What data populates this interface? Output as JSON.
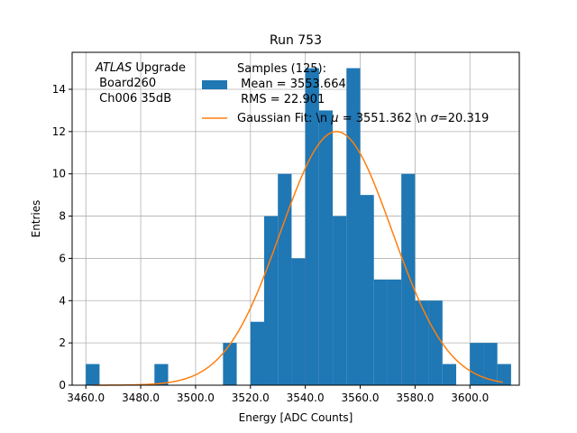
{
  "chart_data": {
    "type": "bar",
    "title": "Run 753",
    "xlabel": "Energy [ADC Counts]",
    "ylabel": "Entries",
    "xlim": [
      3455,
      3618
    ],
    "ylim": [
      0,
      15.75
    ],
    "grid": true,
    "x_ticks": [
      3460,
      3480,
      3500,
      3520,
      3540,
      3560,
      3580,
      3600
    ],
    "x_tick_labels": [
      "3460.0",
      "3480.0",
      "3500.0",
      "3520.0",
      "3540.0",
      "3560.0",
      "3580.0",
      "3600.0"
    ],
    "y_ticks": [
      0,
      2,
      4,
      6,
      8,
      10,
      12,
      14
    ],
    "y_tick_labels": [
      "0",
      "2",
      "4",
      "6",
      "8",
      "10",
      "12",
      "14"
    ],
    "histogram": {
      "name": "Samples (125):\n Mean = 3553.664\n RMS = 22.901",
      "name_lines": [
        "Samples (125):",
        " Mean = 3553.664",
        " RMS = 22.901"
      ],
      "color": "#1f77b4",
      "bin_width": 5,
      "bin_starts": [
        3460,
        3485,
        3510,
        3520,
        3525,
        3530,
        3535,
        3540,
        3545,
        3550,
        3555,
        3560,
        3565,
        3570,
        3575,
        3580,
        3585,
        3590,
        3600,
        3605,
        3610
      ],
      "counts": [
        1,
        1,
        2,
        3,
        8,
        10,
        6,
        15,
        13,
        8,
        15,
        9,
        5,
        5,
        10,
        4,
        4,
        1,
        2,
        2,
        1
      ]
    },
    "fit": {
      "name": "Gaussian Fit: \\n $\\mu$ = 3551.362 \\n $\\sigma$=20.319",
      "label_prefix": "Gaussian Fit: \\n ",
      "label_mu": "μ",
      "label_mid": " = 3551.362 \\n ",
      "label_sigma": "σ",
      "label_suffix": "=20.319",
      "color": "#ff7f0e",
      "mu": 3551.362,
      "sigma": 20.319,
      "amplitude": 12,
      "x_range": [
        3463,
        3612
      ]
    },
    "annotation": {
      "italic": "ATLAS",
      "rest": " Upgrade",
      "line2": " Board260",
      "line3": " Ch006 35dB"
    },
    "legend_position": "top-center"
  }
}
